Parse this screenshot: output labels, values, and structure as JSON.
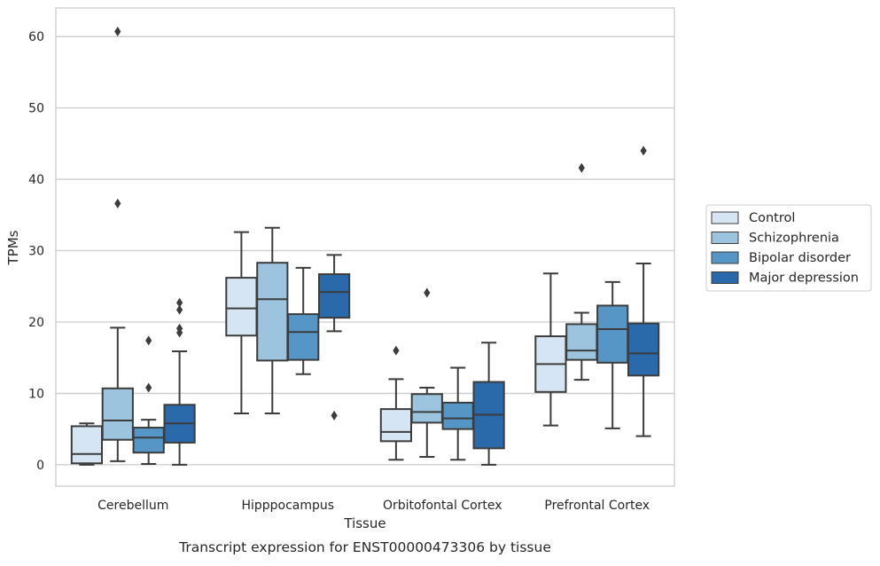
{
  "chart_data": {
    "type": "box",
    "xlabel": "Tissue",
    "ylabel": "TPMs",
    "caption": "Transcript expression for ENST00000473306 by tissue",
    "ylim": [
      -3,
      64
    ],
    "yticks": [
      0,
      10,
      20,
      30,
      40,
      50,
      60
    ],
    "grid": "horizontal",
    "legend_placement": "right",
    "categories": [
      "Cerebellum",
      "Hipppocampus",
      "Orbitofontal Cortex",
      "Prefrontal Cortex"
    ],
    "series": [
      {
        "name": "Control",
        "color": "#d6e5f3",
        "boxes": [
          {
            "whislo": 0.0,
            "q1": 0.2,
            "med": 1.5,
            "q3": 5.4,
            "whishi": 5.8,
            "fliers": []
          },
          {
            "whislo": 7.2,
            "q1": 18.1,
            "med": 21.9,
            "q3": 26.2,
            "whishi": 32.6,
            "fliers": []
          },
          {
            "whislo": 0.7,
            "q1": 3.3,
            "med": 4.6,
            "q3": 7.8,
            "whishi": 12.0,
            "fliers": [
              16.0
            ]
          },
          {
            "whislo": 5.5,
            "q1": 10.2,
            "med": 14.1,
            "q3": 18.0,
            "whishi": 26.8,
            "fliers": []
          }
        ]
      },
      {
        "name": "Schizophrenia",
        "color": "#9cc4de",
        "boxes": [
          {
            "whislo": 0.5,
            "q1": 3.5,
            "med": 6.2,
            "q3": 10.7,
            "whishi": 19.2,
            "fliers": [
              36.6,
              60.7
            ]
          },
          {
            "whislo": 7.2,
            "q1": 14.6,
            "med": 23.2,
            "q3": 28.3,
            "whishi": 33.2,
            "fliers": []
          },
          {
            "whislo": 1.1,
            "q1": 5.9,
            "med": 7.4,
            "q3": 9.9,
            "whishi": 10.8,
            "fliers": [
              24.1
            ]
          },
          {
            "whislo": 11.9,
            "q1": 14.7,
            "med": 16.0,
            "q3": 19.7,
            "whishi": 21.3,
            "fliers": [
              41.6
            ]
          }
        ]
      },
      {
        "name": "Bipolar disorder",
        "color": "#5596c7",
        "boxes": [
          {
            "whislo": 0.1,
            "q1": 1.7,
            "med": 3.8,
            "q3": 5.2,
            "whishi": 6.3,
            "fliers": [
              10.8,
              17.4
            ]
          },
          {
            "whislo": 12.7,
            "q1": 14.7,
            "med": 18.6,
            "q3": 21.1,
            "whishi": 27.6,
            "fliers": []
          },
          {
            "whislo": 0.7,
            "q1": 5.0,
            "med": 6.5,
            "q3": 8.7,
            "whishi": 13.6,
            "fliers": []
          },
          {
            "whislo": 5.1,
            "q1": 14.3,
            "med": 19.0,
            "q3": 22.3,
            "whishi": 25.6,
            "fliers": []
          }
        ]
      },
      {
        "name": "Major depression",
        "color": "#2a69aa",
        "boxes": [
          {
            "whislo": 0.0,
            "q1": 3.1,
            "med": 5.8,
            "q3": 8.4,
            "whishi": 15.9,
            "fliers": [
              18.5,
              19.1,
              21.7,
              22.7
            ]
          },
          {
            "whislo": 18.7,
            "q1": 20.6,
            "med": 24.2,
            "q3": 26.7,
            "whishi": 29.4,
            "fliers": [
              6.9
            ]
          },
          {
            "whislo": 0.0,
            "q1": 2.3,
            "med": 7.0,
            "q3": 11.6,
            "whishi": 17.1,
            "fliers": []
          },
          {
            "whislo": 4.0,
            "q1": 12.5,
            "med": 15.6,
            "q3": 19.8,
            "whishi": 28.2,
            "fliers": [
              44.0
            ]
          }
        ]
      }
    ]
  }
}
